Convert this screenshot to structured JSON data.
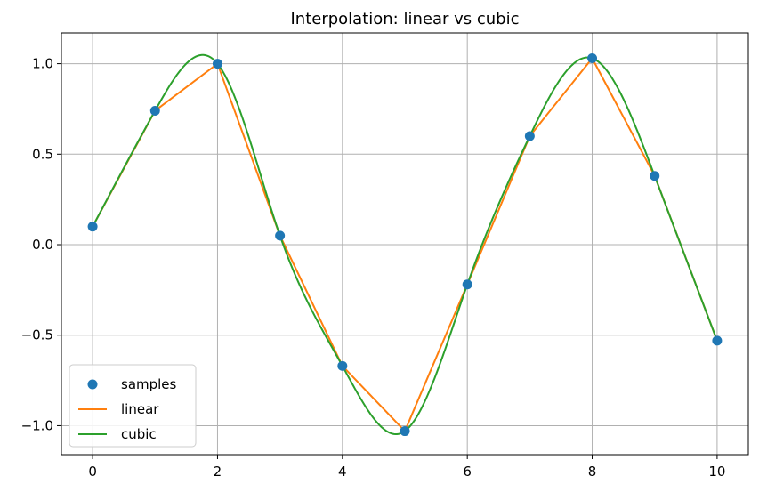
{
  "chart_data": {
    "type": "line",
    "title": "Interpolation: linear vs cubic",
    "xlabel": "",
    "ylabel": "",
    "xlim": [
      -0.5,
      10.5
    ],
    "ylim": [
      -1.16,
      1.17
    ],
    "x_ticks": [
      0,
      2,
      4,
      6,
      8,
      10
    ],
    "x_tick_labels": [
      "0",
      "2",
      "4",
      "6",
      "8",
      "10"
    ],
    "y_ticks": [
      -1.0,
      -0.5,
      0.0,
      0.5,
      1.0
    ],
    "y_tick_labels": [
      "−1.0",
      "−0.5",
      "0.0",
      "0.5",
      "1.0"
    ],
    "grid": true,
    "legend_position": "lower-left",
    "series": [
      {
        "name": "samples",
        "kind": "markers",
        "color": "#1f77b4",
        "x": [
          0,
          1,
          2,
          3,
          4,
          5,
          6,
          7,
          8,
          9,
          10
        ],
        "y": [
          0.1,
          0.74,
          1.0,
          0.05,
          -0.67,
          -1.03,
          -0.22,
          0.6,
          1.03,
          0.38,
          -0.53
        ]
      },
      {
        "name": "linear",
        "kind": "line",
        "color": "#ff7f0e",
        "x": [
          0,
          1,
          2,
          3,
          4,
          5,
          6,
          7,
          8,
          9,
          10
        ],
        "y": [
          0.1,
          0.74,
          1.0,
          0.05,
          -0.67,
          -1.03,
          -0.22,
          0.6,
          1.03,
          0.38,
          -0.53
        ]
      },
      {
        "name": "cubic",
        "kind": "line",
        "color": "#2ca02c",
        "x": [
          0,
          1,
          2,
          3,
          4,
          5,
          6,
          7,
          8,
          9,
          10
        ],
        "y": [
          0.1,
          0.74,
          1.0,
          0.05,
          -0.67,
          -1.03,
          -0.22,
          0.6,
          1.03,
          0.38,
          -0.53
        ]
      }
    ]
  }
}
